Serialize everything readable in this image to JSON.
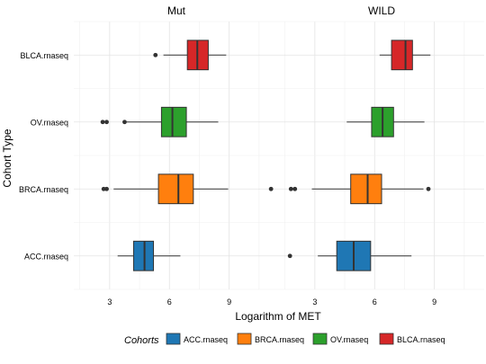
{
  "chart_data": {
    "type": "boxplot",
    "facets": [
      "Mut",
      "WILD"
    ],
    "xlabel": "Logarithm of MET",
    "ylabel": "Cohort Type",
    "x_ticks": [
      3,
      6,
      9
    ],
    "xlim": [
      1.2,
      11.5
    ],
    "categories": [
      "ACC.rnaseq",
      "BRCA.rnaseq",
      "OV.rnaseq",
      "BLCA.rnaseq"
    ],
    "grid": true,
    "legend": {
      "title": "Cohorts",
      "position": "bottom",
      "entries": [
        {
          "label": "ACC.rnaseq",
          "color": "#1f77b4"
        },
        {
          "label": "BRCA.rnaseq",
          "color": "#ff7f0e"
        },
        {
          "label": "OV.rnaseq",
          "color": "#2ca02c"
        },
        {
          "label": "BLCA.rnaseq",
          "color": "#d62728"
        }
      ]
    },
    "boxes": [
      {
        "facet": "Mut",
        "category": "BLCA.rnaseq",
        "whisker_low": 5.7,
        "q1": 6.9,
        "median": 7.4,
        "q3": 7.95,
        "whisker_high": 8.85,
        "outliers": [
          5.3
        ]
      },
      {
        "facet": "Mut",
        "category": "OV.rnaseq",
        "whisker_low": 3.8,
        "q1": 5.6,
        "median": 6.15,
        "q3": 6.85,
        "whisker_high": 8.45,
        "outliers": [
          2.65,
          2.85,
          3.75
        ]
      },
      {
        "facet": "Mut",
        "category": "BRCA.rnaseq",
        "whisker_low": 3.2,
        "q1": 5.45,
        "median": 6.45,
        "q3": 7.2,
        "whisker_high": 8.95,
        "outliers": [
          2.7,
          2.85,
          11.1
        ]
      },
      {
        "facet": "Mut",
        "category": "ACC.rnaseq",
        "whisker_low": 3.4,
        "q1": 4.2,
        "median": 4.75,
        "q3": 5.2,
        "whisker_high": 6.55,
        "outliers": []
      },
      {
        "facet": "WILD",
        "category": "BLCA.rnaseq",
        "whisker_low": 6.25,
        "q1": 6.85,
        "median": 7.55,
        "q3": 7.9,
        "whisker_high": 8.8,
        "outliers": []
      },
      {
        "facet": "WILD",
        "category": "OV.rnaseq",
        "whisker_low": 4.6,
        "q1": 5.85,
        "median": 6.4,
        "q3": 6.95,
        "whisker_high": 8.5,
        "outliers": []
      },
      {
        "facet": "WILD",
        "category": "BRCA.rnaseq",
        "whisker_low": 2.85,
        "q1": 4.8,
        "median": 5.65,
        "q3": 6.35,
        "whisker_high": 8.45,
        "outliers": [
          1.8,
          2.0,
          8.7
        ]
      },
      {
        "facet": "WILD",
        "category": "ACC.rnaseq",
        "whisker_low": 3.15,
        "q1": 4.1,
        "median": 4.95,
        "q3": 5.8,
        "whisker_high": 7.85,
        "outliers": [
          1.75
        ]
      }
    ]
  }
}
